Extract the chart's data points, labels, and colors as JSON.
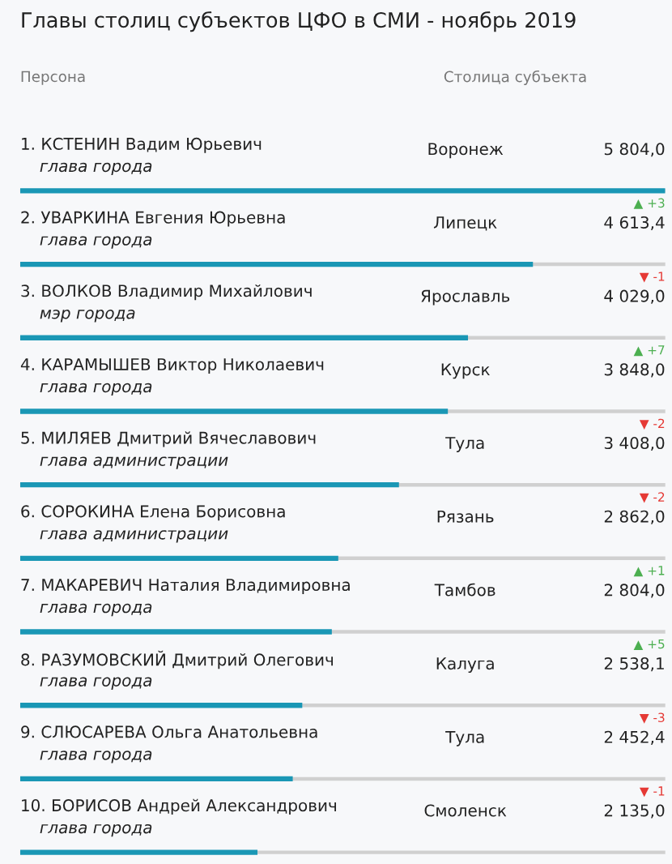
{
  "chart_data": {
    "type": "bar",
    "orientation": "horizontal",
    "title": "Главы столиц субъектов ЦФО в СМИ - ноябрь 2019",
    "categories": [
      "1. КСТЕНИН Вадим Юрьевич\nглава города",
      "2. УВАРКИНА Евгения Юрьевна\nглава города",
      "3. ВОЛКОВ Владимир Михайлович\nмэр города",
      "4. КАРАМЫШЕВ Виктор Николаевич\nглава города",
      "5. МИЛЯЕВ Дмитрий Вячеславович\nглава администрации",
      "6. СОРОКИНА Елена Борисовна\nглава администрации",
      "7. МАКАРЕВИЧ Наталия Владимировна\nглава города",
      "8. РАЗУМОВСКИЙ Дмитрий Олегович\nглава города",
      "9. СЛЮСАРЕВА Ольга Анатольевна\nглава города",
      "10. БОРИСОВ Андрей Александрович\nглава города"
    ],
    "values": [
      5804.0,
      4613.4,
      4029.0,
      3848.0,
      3408.0,
      2862.0,
      2804.0,
      2538.1,
      2452.4,
      2135.0
    ],
    "value_labels": [
      "5 804,0",
      "4 613,4",
      "4 029,0",
      "3 848,0",
      "3 408,0",
      "2 862,0",
      "2 804,0",
      "2 538,1",
      "2 452,4",
      "2 135,0"
    ],
    "color": "#1a97b5",
    "grid": "y",
    "annotations": [
      "Персона",
      "Столица субъекта",
      "Воронеж",
      "Липецк",
      "▲ +3",
      "Ярославль",
      "▼ -1",
      "Курск",
      "▲ +7",
      "Тула",
      "▼ -2",
      "Рязань",
      "▼ -2",
      "Тамбов",
      "▲ +1",
      "Калуга",
      "▲ +5",
      "Тула",
      "▼ -3",
      "Смоленск",
      "▼ -1"
    ]
  }
}
